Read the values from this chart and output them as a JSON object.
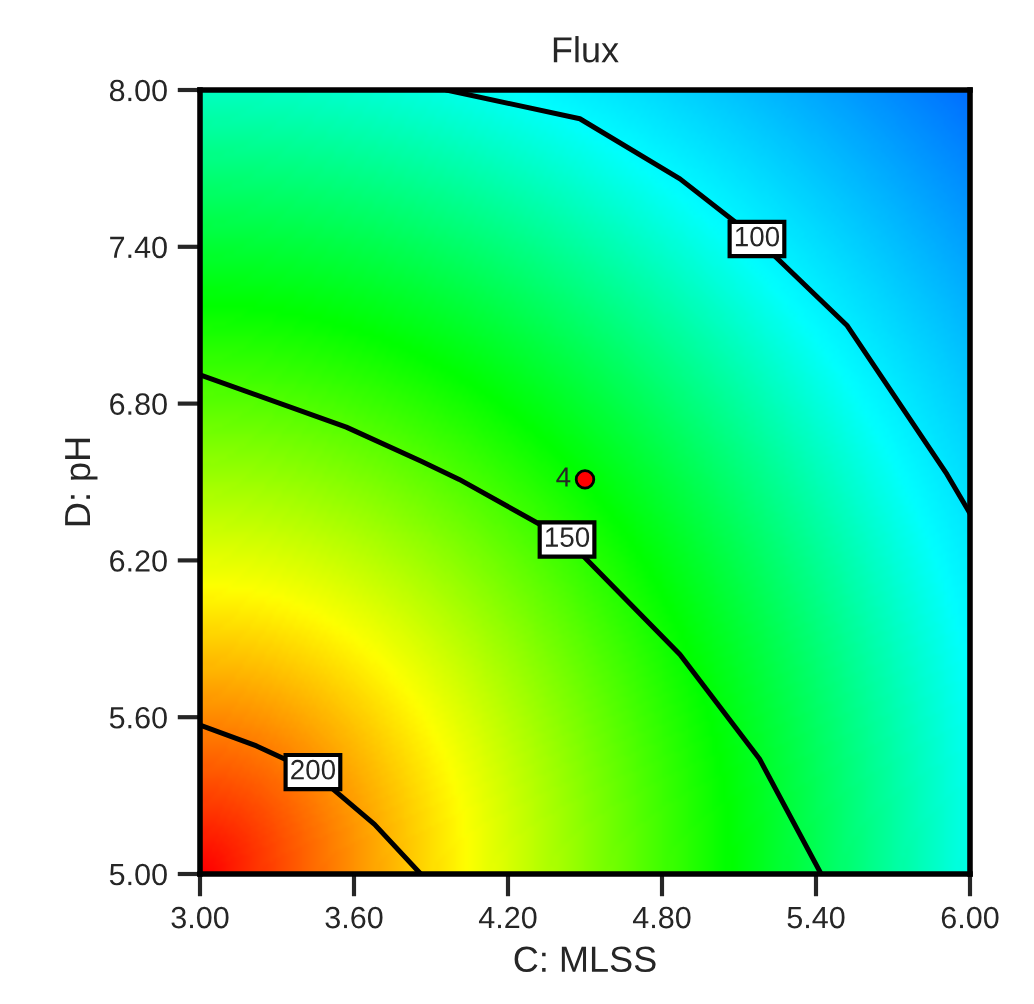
{
  "chart_data": {
    "type": "line",
    "title": "Flux",
    "xlabel": "C: MLSS",
    "ylabel": "D: pH",
    "xlim": [
      3.0,
      6.0
    ],
    "ylim": [
      5.0,
      8.0
    ],
    "xticks": [
      {
        "value": 3.0,
        "label": "3.00"
      },
      {
        "value": 3.6,
        "label": "3.60"
      },
      {
        "value": 4.2,
        "label": "4.20"
      },
      {
        "value": 4.8,
        "label": "4.80"
      },
      {
        "value": 5.4,
        "label": "5.40"
      },
      {
        "value": 6.0,
        "label": "6.00"
      }
    ],
    "yticks": [
      {
        "value": 5.0,
        "label": "5.00"
      },
      {
        "value": 5.6,
        "label": "5.60"
      },
      {
        "value": 6.2,
        "label": "6.20"
      },
      {
        "value": 6.8,
        "label": "6.80"
      },
      {
        "value": 7.4,
        "label": "7.40"
      },
      {
        "value": 8.0,
        "label": "8.00"
      }
    ],
    "grid": false,
    "legend": false,
    "marker": "none",
    "line_style": "solid",
    "series": [
      {
        "name": "100",
        "color": "#000000",
        "x": [
          3.96,
          4.48,
          4.87,
          5.17,
          5.52,
          5.91,
          6.0
        ],
        "values": [
          8.0,
          7.89,
          7.66,
          7.43,
          7.1,
          6.53,
          6.38
        ]
      },
      {
        "name": "150",
        "color": "#000000",
        "x": [
          3.0,
          3.57,
          3.86,
          4.01,
          4.43,
          4.87,
          5.18,
          5.42
        ],
        "values": [
          6.91,
          6.71,
          6.58,
          6.51,
          6.28,
          5.84,
          5.44,
          5.0
        ]
      },
      {
        "name": "200",
        "color": "#000000",
        "x": [
          3.0,
          3.22,
          3.44,
          3.68,
          3.86
        ],
        "values": [
          5.57,
          5.49,
          5.39,
          5.19,
          5.0
        ]
      },
      {
        "type": "scatter",
        "color": "#ff0000",
        "marker": "circle",
        "x": [
          4.5
        ],
        "values": [
          6.51
        ]
      }
    ],
    "annotations": [
      {
        "text": "4",
        "x": 4.5,
        "y": 6.51
      }
    ]
  }
}
